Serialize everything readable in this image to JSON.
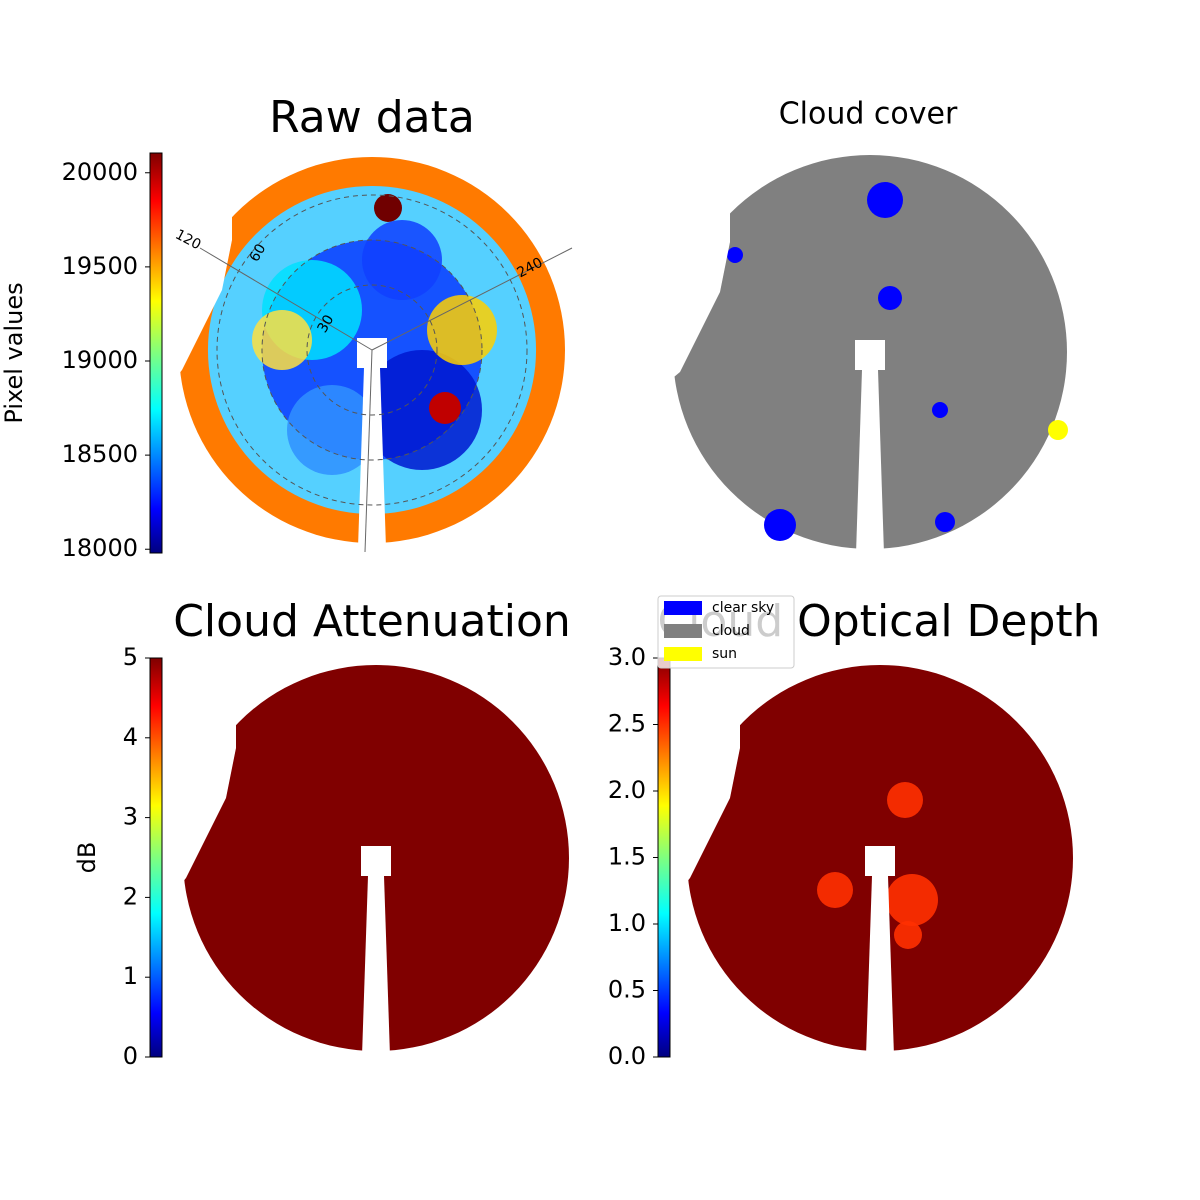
{
  "chart_data": [
    {
      "type": "image",
      "title": "Raw data",
      "colorbar": {
        "label": "Pixel values",
        "lim": [
          17980,
          20105
        ],
        "ticks": [
          18000,
          18500,
          19000,
          19500,
          20000
        ]
      },
      "azimuth_labels": [
        120,
        240
      ],
      "zenith_labels": [
        60,
        30
      ]
    },
    {
      "type": "image",
      "title": "Cloud cover",
      "legend": {
        "entries": [
          {
            "name": "clear sky",
            "color": "#0000ff"
          },
          {
            "name": "cloud",
            "color": "#808080"
          },
          {
            "name": "sun",
            "color": "#ffff00"
          }
        ]
      }
    },
    {
      "type": "image",
      "title": "Cloud Attenuation",
      "colorbar": {
        "label": "dB",
        "lim": [
          0,
          5
        ],
        "ticks": [
          0,
          1,
          2,
          3,
          4,
          5
        ]
      }
    },
    {
      "type": "image",
      "title": "Cloud Optical Depth",
      "colorbar": {
        "lim": [
          0,
          3
        ],
        "ticks": [
          {
            "value": 0,
            "label": "0.0"
          },
          0.5,
          {
            "value": 1,
            "label": "1.0"
          },
          1.5,
          {
            "value": 2,
            "label": "2.0"
          },
          2.5,
          {
            "value": 3,
            "label": "3.0"
          }
        ]
      }
    }
  ]
}
